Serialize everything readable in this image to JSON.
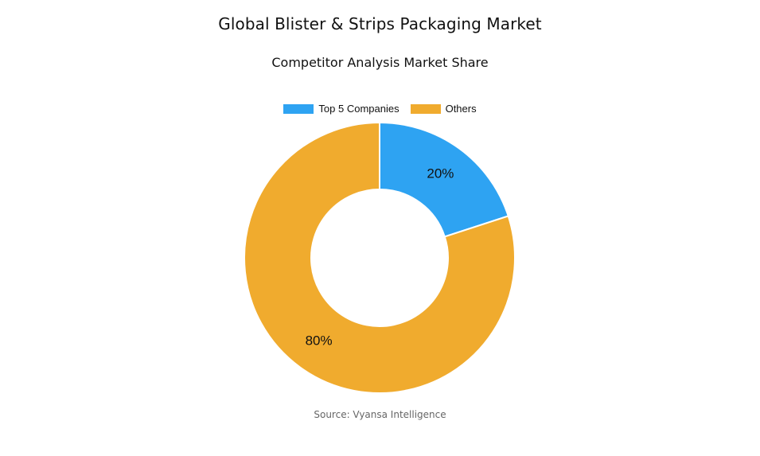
{
  "chart_data": {
    "type": "pie",
    "title": "Global Blister & Strips Packaging Market",
    "subtitle": "Competitor Analysis Market Share",
    "legend_position": "top",
    "donut": true,
    "series": [
      {
        "name": "Top 5 Companies",
        "value": 20,
        "label": "20%",
        "color": "#2EA3F2"
      },
      {
        "name": "Others",
        "value": 80,
        "label": "80%",
        "color": "#F0AB2E"
      }
    ]
  },
  "source": "Source: Vyansa Intelligence"
}
